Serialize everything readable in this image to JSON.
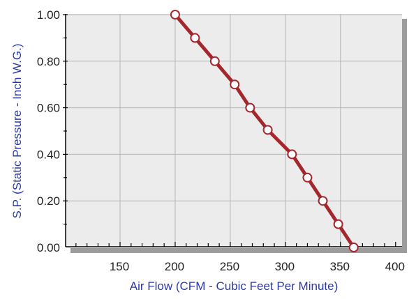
{
  "chart_data": {
    "type": "line",
    "title": "",
    "xlabel": "Air Flow (CFM - Cubic Feet Per Minute)",
    "ylabel": "S.P. (Static Pressure - Inch W.G.)",
    "xlim": [
      100,
      400
    ],
    "ylim": [
      0,
      1
    ],
    "x_ticks": [
      "150",
      "200",
      "250",
      "300",
      "350",
      "400"
    ],
    "y_ticks": [
      "0.00",
      "0.20",
      "0.40",
      "0.60",
      "0.80",
      "1.00"
    ],
    "grid": true,
    "series": [
      {
        "name": "",
        "color": "#a3282e",
        "marker_fill": "#ffffff",
        "x": [
          200,
          218,
          236,
          254,
          268,
          284,
          306,
          320,
          334,
          348,
          362
        ],
        "y": [
          1.0,
          0.9,
          0.8,
          0.7,
          0.6,
          0.505,
          0.4,
          0.3,
          0.2,
          0.1,
          0.0
        ]
      }
    ]
  },
  "colors": {
    "plot_background": "#ececec",
    "grid": "#b4b4b4",
    "axis": "#000000",
    "shadow": "#9c9c9c",
    "axis_title": "#2b3aa6"
  }
}
